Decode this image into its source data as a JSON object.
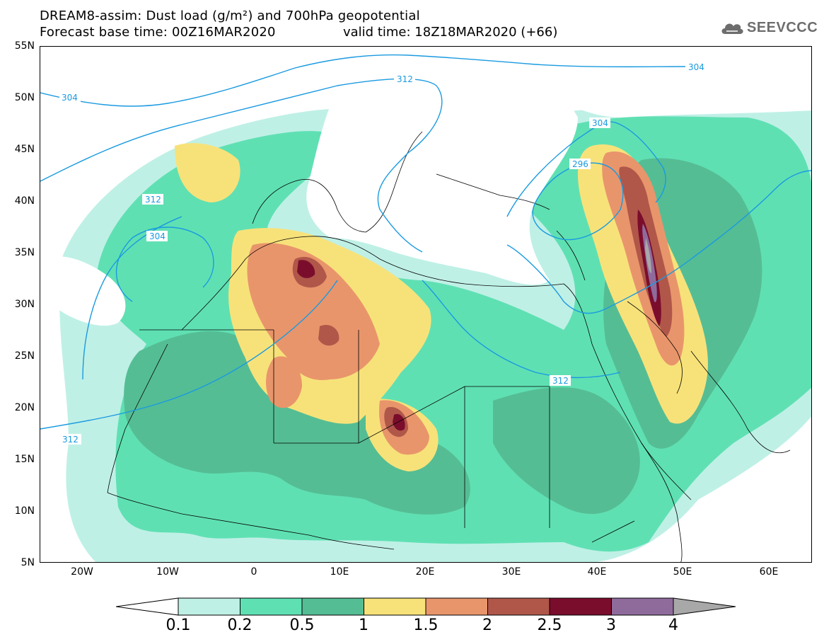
{
  "header": {
    "title_line1": "DREAM8-assim: Dust load (g/m²) and 700hPa geopotential",
    "title_line2": "Forecast base time: 00Z16MAR2020",
    "valid_time": "valid time: 18Z18MAR2020 (+66)",
    "logo_text": "SEEVCCC"
  },
  "map": {
    "lon_range": [
      -25,
      65
    ],
    "lat_range": [
      5,
      55
    ],
    "lat_labels": [
      "55N",
      "50N",
      "45N",
      "40N",
      "35N",
      "30N",
      "25N",
      "20N",
      "15N",
      "10N",
      "5N"
    ],
    "lon_labels": [
      "20W",
      "10W",
      "0",
      "10E",
      "20E",
      "30E",
      "40E",
      "50E",
      "60E"
    ],
    "contour_labels": [
      "304",
      "312",
      "304",
      "296",
      "304",
      "312",
      "304",
      "312",
      "312"
    ],
    "contour_color": "#1a9ae0"
  },
  "colorbar": {
    "labels": [
      "0.1",
      "0.2",
      "0.5",
      "1",
      "1.5",
      "2",
      "2.5",
      "3",
      "4"
    ],
    "colors": [
      "#bff0e6",
      "#5fe0b3",
      "#55bd94",
      "#f7e27a",
      "#e9956b",
      "#b0574a",
      "#7b0d2c",
      "#8f6b9c",
      "#a8a8a8"
    ]
  }
}
